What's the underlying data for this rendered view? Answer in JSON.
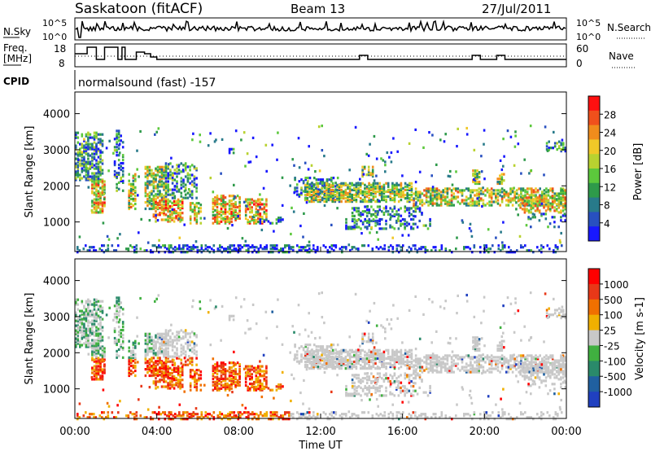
{
  "header": {
    "station": "Saskatoon (fitACF)",
    "beam": "Beam 13",
    "date": "27/Jul/2011"
  },
  "panels": {
    "nsky": {
      "label": "N.Sky",
      "ticks": [
        "10^5",
        "10^0"
      ],
      "right_label": "N.Search",
      "right_ticks": [
        "10^5",
        "10^0"
      ]
    },
    "freq": {
      "label_line1": "Freq.",
      "label_line2": "[MHz]",
      "ticks": [
        "18",
        "8"
      ],
      "right_label": "Nave",
      "right_ticks": [
        "60",
        "0"
      ]
    },
    "cpid": {
      "label": "CPID",
      "text": "normalsound (fast) -157"
    }
  },
  "chart_data": [
    {
      "type": "heatmap",
      "title": "",
      "xlabel": "",
      "ylabel": "Slant Range [km]",
      "xlim": [
        0,
        24
      ],
      "ylim": [
        180,
        4600
      ],
      "yticks": [
        1000,
        2000,
        3000,
        4000
      ],
      "colorbar": {
        "label": "Power [dB]",
        "range": [
          0,
          32
        ],
        "ticks": [
          4,
          8,
          12,
          16,
          20,
          24,
          28
        ],
        "colors": [
          "#1818ff",
          "#2850c0",
          "#287a8a",
          "#2e9a4a",
          "#5cc83c",
          "#b8d230",
          "#f0c828",
          "#f08c1c",
          "#f0501c",
          "#ff1010"
        ]
      }
    },
    {
      "type": "heatmap",
      "title": "",
      "xlabel": "Time UT",
      "ylabel": "Slant Range [km]",
      "xlim": [
        0,
        24
      ],
      "ylim": [
        180,
        4600
      ],
      "yticks": [
        1000,
        2000,
        3000,
        4000
      ],
      "xticks": [
        "00:00",
        "04:00",
        "08:00",
        "12:00",
        "16:00",
        "20:00",
        "00:00"
      ],
      "colorbar": {
        "label": "Velocity [m s-1]",
        "ticks": [
          "1000",
          "500",
          "100",
          "25",
          "-25",
          "-100",
          "-500",
          "-1000"
        ],
        "colors": [
          "#2040c0",
          "#2060a0",
          "#2a8a6a",
          "#40b040",
          "#c8c8c8",
          "#f0b000",
          "#f07000",
          "#e83818",
          "#ff0000"
        ]
      }
    }
  ]
}
